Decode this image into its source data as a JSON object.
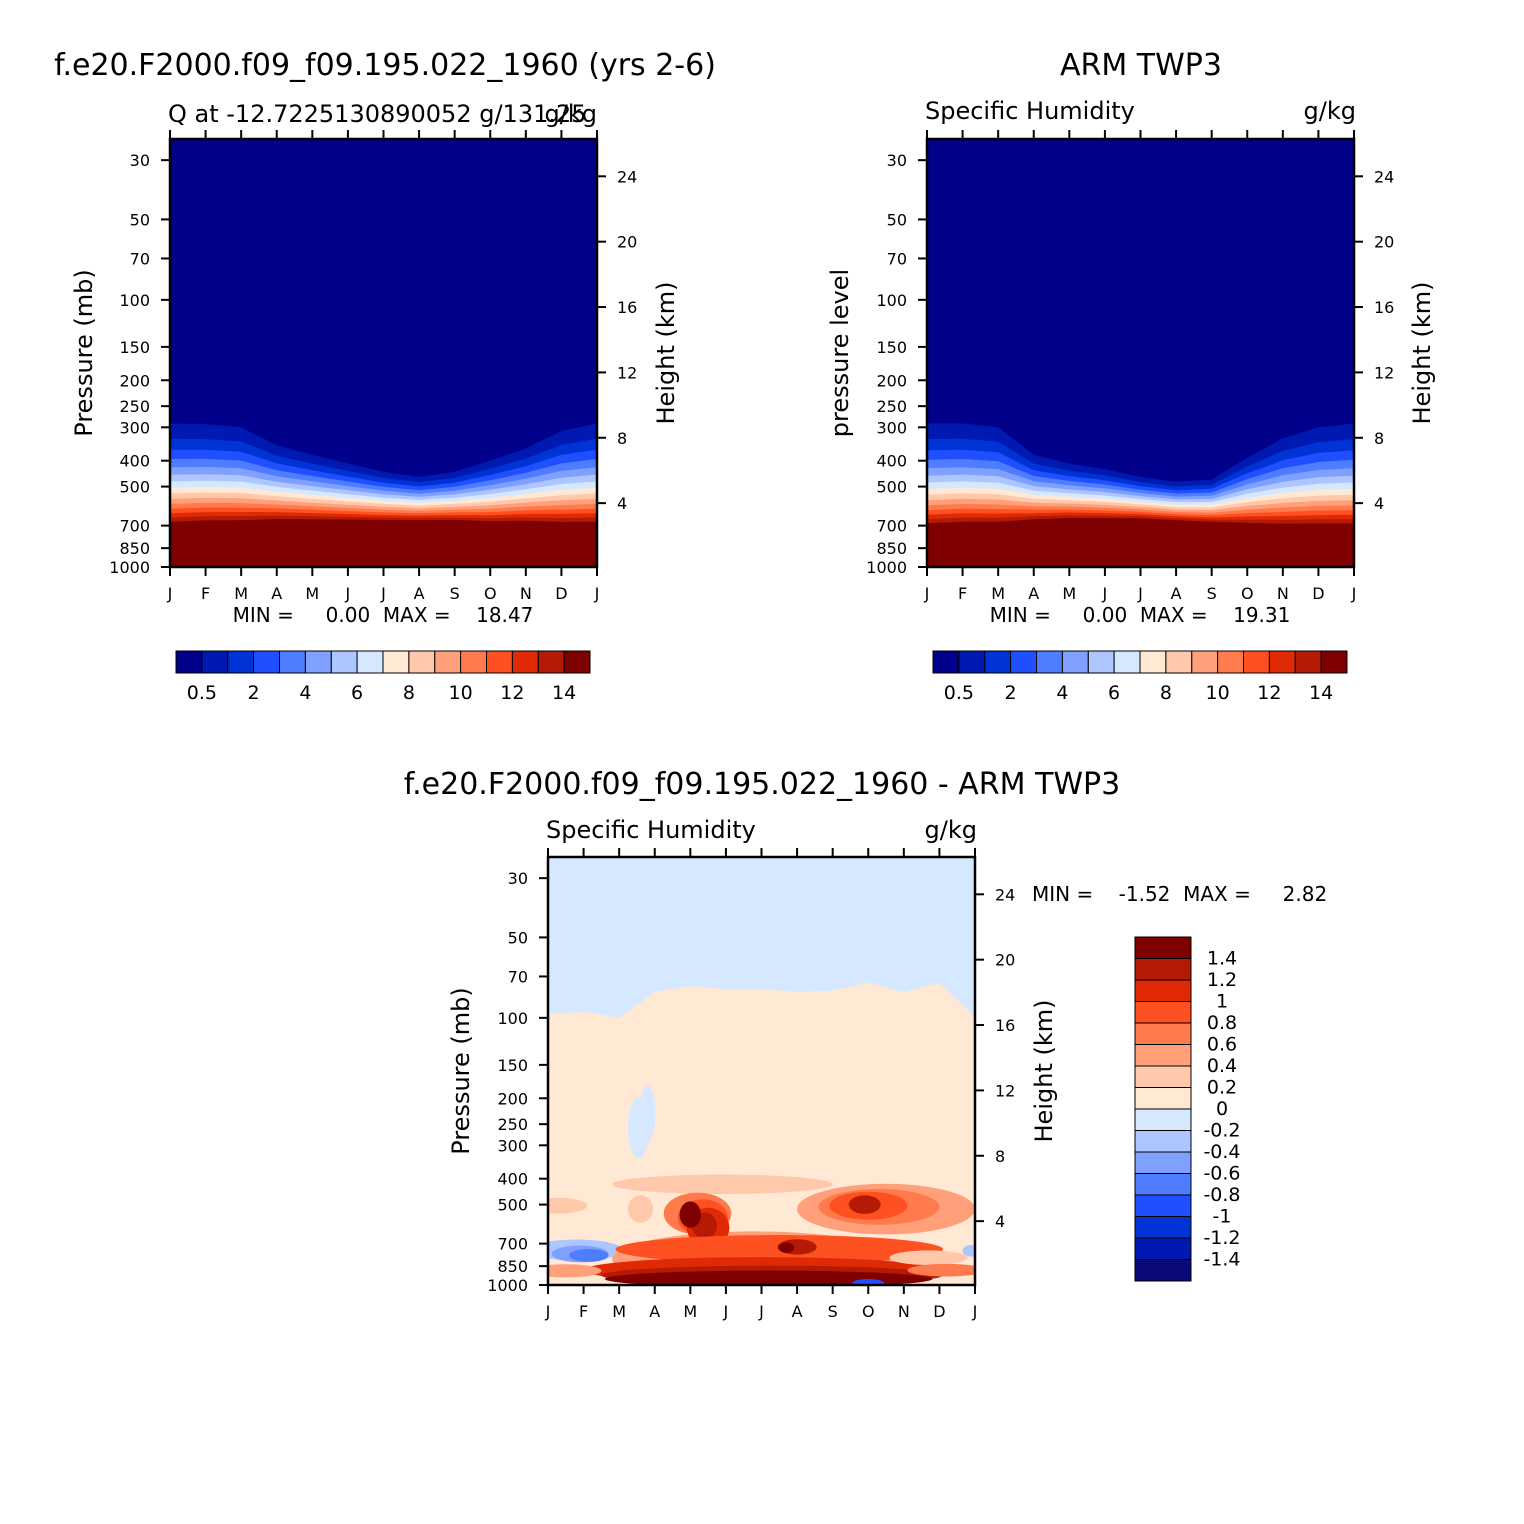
{
  "colors": {
    "abs_scale": [
      "#00008a",
      "#0019b0",
      "#0033d6",
      "#1f4fff",
      "#4f7dff",
      "#7fa0ff",
      "#adc6ff",
      "#d6e8ff",
      "#ffe8d4",
      "#ffc8ab",
      "#ffa07a",
      "#ff7a4d",
      "#ff5022",
      "#e02a05",
      "#b41a04",
      "#7f0000"
    ],
    "diff_scale": [
      "#0a0a78",
      "#0019b0",
      "#0033d6",
      "#1f4fff",
      "#4f7dff",
      "#7fa0ff",
      "#adc6ff",
      "#d6e8ff",
      "#ffe8d4",
      "#ffc8ab",
      "#ffa07a",
      "#ff7a4d",
      "#ff5022",
      "#e02a05",
      "#b41a04",
      "#7f0000"
    ]
  },
  "chart_data": [
    {
      "id": "model",
      "type": "heatmap",
      "title": "f.e20.F2000.f09_f09.195.022_1960 (yrs 2-6)",
      "subtitle_left": "Q at -12.7225130890052 g/131.25",
      "subtitle_right": "g/kg",
      "xlabel": "",
      "ylabel": "Pressure (mb)",
      "ylabel_right": "Height (km)",
      "x_tick_labels": [
        "J",
        "F",
        "M",
        "A",
        "M",
        "J",
        "J",
        "A",
        "S",
        "O",
        "N",
        "D",
        "J"
      ],
      "y_ticks": [
        30,
        50,
        70,
        100,
        150,
        200,
        250,
        300,
        400,
        500,
        700,
        850,
        1000
      ],
      "y_tick_labels": [
        "30",
        "50",
        "70",
        "100",
        "150",
        "200",
        "250",
        "300",
        "400",
        "500",
        "700",
        "850",
        "1000"
      ],
      "y_scale": "log",
      "ylim": [
        1000,
        25
      ],
      "height_ticks": [
        4,
        8,
        12,
        16,
        20,
        24
      ],
      "stats_text": "MIN =     0.00  MAX =    18.47",
      "min": 0.0,
      "max": 18.47,
      "legend": "bottom",
      "colorbar_labels": [
        "0.5",
        "2",
        "4",
        "6",
        "8",
        "10",
        "12",
        "14"
      ],
      "contour_levels": [
        0.5,
        1,
        2,
        3,
        4,
        5,
        6,
        7,
        8,
        9,
        10,
        11,
        12,
        13,
        14
      ],
      "moist_top_pressure": [
        290,
        292,
        300,
        350,
        380,
        410,
        440,
        460,
        440,
        400,
        360,
        310,
        290
      ],
      "gradient_depth_mb": [
        410,
        400,
        390,
        330,
        300,
        270,
        240,
        220,
        240,
        290,
        330,
        390,
        410
      ]
    },
    {
      "id": "obs",
      "type": "heatmap",
      "title": "ARM TWP3",
      "subtitle_left": "Specific Humidity",
      "subtitle_right": "g/kg",
      "xlabel": "",
      "ylabel": "pressure level",
      "ylabel_right": "Height (km)",
      "x_tick_labels": [
        "J",
        "F",
        "M",
        "A",
        "M",
        "J",
        "J",
        "A",
        "S",
        "O",
        "N",
        "D",
        "J"
      ],
      "y_ticks": [
        30,
        50,
        70,
        100,
        150,
        200,
        250,
        300,
        400,
        500,
        700,
        850,
        1000
      ],
      "y_tick_labels": [
        "30",
        "50",
        "70",
        "100",
        "150",
        "200",
        "250",
        "300",
        "400",
        "500",
        "700",
        "850",
        "1000"
      ],
      "y_scale": "log",
      "ylim": [
        1000,
        25
      ],
      "height_ticks": [
        4,
        8,
        12,
        16,
        20,
        24
      ],
      "stats_text": "MIN =     0.00  MAX =    19.31",
      "min": 0.0,
      "max": 19.31,
      "legend": "bottom",
      "colorbar_labels": [
        "0.5",
        "2",
        "4",
        "6",
        "8",
        "10",
        "12",
        "14"
      ],
      "contour_levels": [
        0.5,
        1,
        2,
        3,
        4,
        5,
        6,
        7,
        8,
        9,
        10,
        11,
        12,
        13,
        14
      ],
      "moist_top_pressure": [
        290,
        290,
        300,
        380,
        410,
        430,
        460,
        480,
        470,
        390,
        330,
        300,
        290
      ],
      "gradient_depth_mb": [
        420,
        410,
        400,
        300,
        260,
        240,
        210,
        200,
        220,
        310,
        380,
        410,
        420
      ]
    },
    {
      "id": "diff",
      "type": "heatmap",
      "title": "f.e20.F2000.f09_f09.195.022_1960 - ARM TWP3",
      "subtitle_left": "Specific Humidity",
      "subtitle_right": "g/kg",
      "xlabel": "",
      "ylabel": "Pressure (mb)",
      "ylabel_right": "Height (km)",
      "x_tick_labels": [
        "J",
        "F",
        "M",
        "A",
        "M",
        "J",
        "J",
        "A",
        "S",
        "O",
        "N",
        "D",
        "J"
      ],
      "y_ticks": [
        30,
        50,
        70,
        100,
        150,
        200,
        250,
        300,
        400,
        500,
        700,
        850,
        1000
      ],
      "y_tick_labels": [
        "30",
        "50",
        "70",
        "100",
        "150",
        "200",
        "250",
        "300",
        "400",
        "500",
        "700",
        "850",
        "1000"
      ],
      "y_scale": "log",
      "ylim": [
        1000,
        25
      ],
      "height_ticks": [
        4,
        8,
        12,
        16,
        20,
        24
      ],
      "stats_text": "MIN =    -1.52  MAX =     2.82",
      "min": -1.52,
      "max": 2.82,
      "legend": "right",
      "colorbar_labels": [
        "1.4",
        "1.2",
        "1",
        "0.8",
        "0.6",
        "0.4",
        "0.2",
        "0",
        "-0.2",
        "-0.4",
        "-0.6",
        "-0.8",
        "-1",
        "-1.2",
        "-1.4"
      ],
      "contour_levels": [
        -1.4,
        -1.2,
        -1,
        -0.8,
        -0.6,
        -0.4,
        -0.2,
        0,
        0.2,
        0.4,
        0.6,
        0.8,
        1,
        1.2,
        1.4
      ],
      "zero_line_pressure": [
        97,
        95,
        100,
        80,
        76,
        78,
        78,
        80,
        79,
        74,
        80,
        74,
        99
      ]
    }
  ]
}
